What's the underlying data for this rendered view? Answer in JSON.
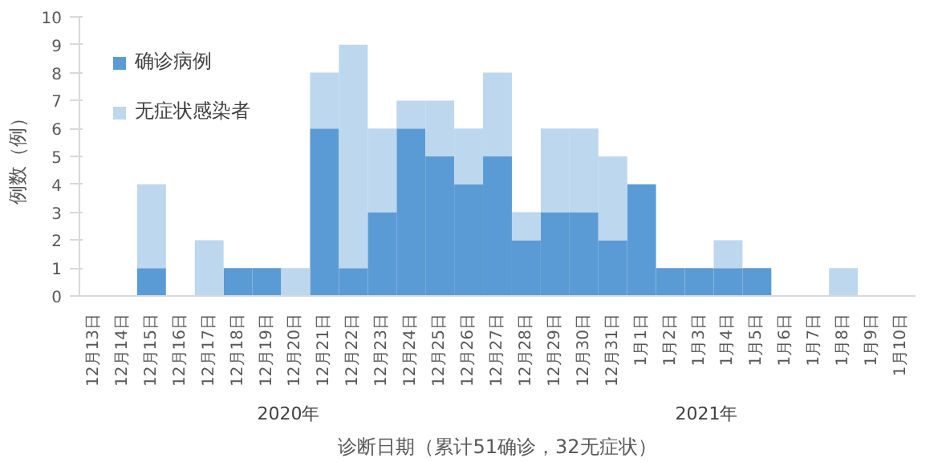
{
  "chart_data": {
    "type": "bar",
    "stacked": true,
    "xlabel": "诊断日期（累计51确诊，32无症状）",
    "ylabel": "例数（例）",
    "categories": [
      "12月13日",
      "12月14日",
      "12月15日",
      "12月16日",
      "12月17日",
      "12月18日",
      "12月19日",
      "12月20日",
      "12月21日",
      "12月22日",
      "12月23日",
      "12月24日",
      "12月25日",
      "12月26日",
      "12月27日",
      "12月28日",
      "12月29日",
      "12月30日",
      "12月31日",
      "1月1日",
      "1月2日",
      "1月3日",
      "1月4日",
      "1月5日",
      "1月6日",
      "1月7日",
      "1月8日",
      "1月9日",
      "1月10日"
    ],
    "series": [
      {
        "name": "确诊病例",
        "color": "#5b9bd5",
        "values": [
          0,
          0,
          1,
          0,
          0,
          1,
          1,
          0,
          6,
          1,
          3,
          6,
          5,
          4,
          5,
          2,
          3,
          3,
          2,
          4,
          1,
          1,
          1,
          1,
          0,
          0,
          0,
          0,
          0
        ]
      },
      {
        "name": "无症状感染者",
        "color": "#bdd7ee",
        "values": [
          0,
          0,
          3,
          0,
          2,
          0,
          0,
          1,
          2,
          8,
          3,
          1,
          2,
          2,
          3,
          1,
          3,
          3,
          3,
          0,
          0,
          0,
          1,
          0,
          0,
          0,
          1,
          0,
          0
        ]
      }
    ],
    "ylim": [
      0,
      10
    ],
    "yticks": [
      0,
      1,
      2,
      3,
      4,
      5,
      6,
      7,
      8,
      9,
      10
    ],
    "grid": false,
    "legend": "top left",
    "annotations": [
      "2020年",
      "2021年"
    ]
  }
}
